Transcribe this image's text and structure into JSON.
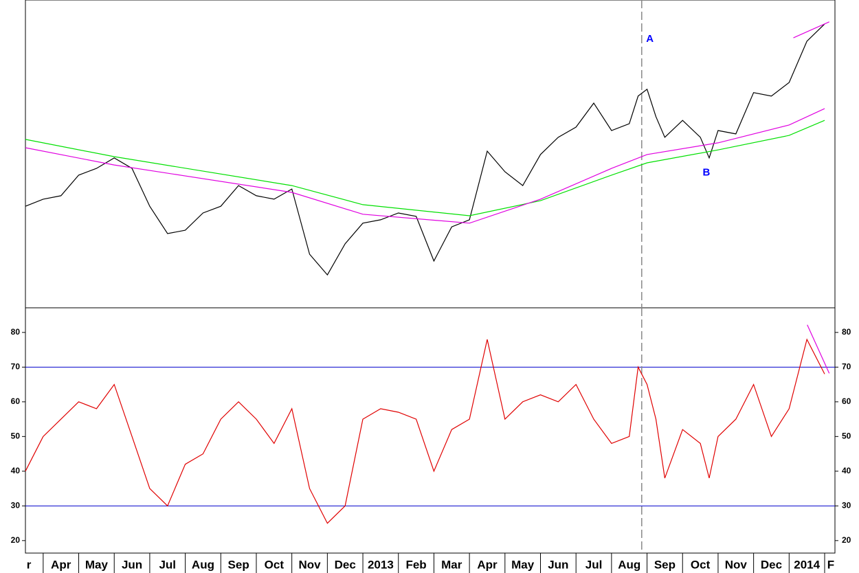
{
  "chart_data": [
    {
      "type": "line",
      "x": [
        0.5,
        1,
        1.5,
        2,
        2.5,
        3,
        3.5,
        4,
        4.5,
        5,
        5.5,
        6,
        6.5,
        7,
        7.5,
        8,
        8.5,
        9,
        9.5,
        10,
        10.5,
        11,
        11.5,
        12,
        12.5,
        13,
        13.5,
        14,
        14.5,
        15,
        15.5,
        16,
        16.5,
        17,
        17.5,
        17.75,
        18,
        18.25,
        18.5,
        19,
        19.5,
        19.75,
        20,
        20.5,
        21,
        21.5,
        22,
        22.5,
        23
      ],
      "xlim": [
        0.5,
        23.29
      ],
      "ylim": [
        0,
        100
      ],
      "series": [
        {
          "color": "#000000",
          "values": [
            33.0,
            35.3,
            36.4,
            43.1,
            45.3,
            48.7,
            45.3,
            33.0,
            24.1,
            25.2,
            30.8,
            33.0,
            39.7,
            36.4,
            35.3,
            38.6,
            17.4,
            10.7,
            20.8,
            27.5,
            28.6,
            30.8,
            29.7,
            15.2,
            26.3,
            28.6,
            50.9,
            44.2,
            39.7,
            49.8,
            55.4,
            58.7,
            66.5,
            57.6,
            59.8,
            68.8,
            71.0,
            62.1,
            55.4,
            60.9,
            55.4,
            48.7,
            57.6,
            56.5,
            69.9,
            68.8,
            73.2,
            86.6,
            92.2
          ]
        },
        {
          "color": "#00e000",
          "x": [
            0.5,
            3,
            8,
            10,
            13,
            15,
            17,
            18,
            20,
            22,
            23
          ],
          "values": [
            54.7,
            49.1,
            39.7,
            33.5,
            29.9,
            34.8,
            43.1,
            47.1,
            51.3,
            56.0,
            60.9
          ]
        },
        {
          "color": "#e000e0",
          "x": [
            0.5,
            3,
            8,
            10,
            13,
            15,
            17,
            18,
            20,
            22,
            23
          ],
          "values": [
            52.0,
            46.4,
            37.5,
            30.4,
            27.5,
            35.3,
            45.3,
            49.8,
            53.6,
            59.4,
            64.7
          ]
        },
        {
          "color": "#e000e0",
          "x": [
            22.12,
            23.13
          ],
          "values": [
            87.7,
            92.9
          ]
        }
      ],
      "vline": 17.85,
      "annotations": [
        {
          "text": "A",
          "x": 18.08,
          "y": 87.3
        },
        {
          "text": "B",
          "x": 19.67,
          "y": 43.8
        }
      ]
    },
    {
      "type": "line",
      "x": [
        0.5,
        1,
        1.5,
        2,
        2.5,
        3,
        3.5,
        4,
        4.5,
        5,
        5.5,
        6,
        6.5,
        7,
        7.5,
        8,
        8.5,
        9,
        9.5,
        10,
        10.5,
        11,
        11.5,
        12,
        12.5,
        13,
        13.5,
        14,
        14.5,
        15,
        15.5,
        16,
        16.5,
        17,
        17.5,
        17.75,
        18,
        18.25,
        18.5,
        19,
        19.5,
        19.75,
        20,
        20.5,
        21,
        21.5,
        22,
        22.5,
        23
      ],
      "xlim": [
        0.5,
        23.29
      ],
      "ylim": [
        16.4,
        87.1
      ],
      "yticks": [
        20,
        30,
        40,
        50,
        60,
        70,
        80
      ],
      "hlines": [
        30,
        70
      ],
      "hline_color": "#0000cc",
      "series": [
        {
          "color": "#e00000",
          "values": [
            40,
            50,
            55,
            60,
            58,
            65,
            50,
            35,
            30,
            42,
            45,
            55,
            60,
            55,
            48,
            58,
            35,
            25,
            30,
            55,
            58,
            57,
            55,
            40,
            52,
            55,
            78,
            55,
            60,
            62,
            60,
            65,
            55,
            48,
            50,
            70,
            65,
            55,
            38,
            52,
            48,
            38,
            50,
            55,
            65,
            50,
            58,
            78,
            68
          ]
        },
        {
          "color": "#e000e0",
          "x": [
            22.51,
            23.13
          ],
          "values": [
            82.2,
            68.2
          ]
        }
      ],
      "vline": 17.85,
      "xticks": [
        {
          "value": 0,
          "label": "r"
        },
        {
          "value": 1,
          "label": "Apr"
        },
        {
          "value": 2,
          "label": "May"
        },
        {
          "value": 3,
          "label": "Jun"
        },
        {
          "value": 4,
          "label": "Jul"
        },
        {
          "value": 5,
          "label": "Aug"
        },
        {
          "value": 6,
          "label": "Sep"
        },
        {
          "value": 7,
          "label": "Oct"
        },
        {
          "value": 8,
          "label": "Nov"
        },
        {
          "value": 9,
          "label": "Dec"
        },
        {
          "value": 10,
          "label": "2013"
        },
        {
          "value": 11,
          "label": "Feb"
        },
        {
          "value": 12,
          "label": "Mar"
        },
        {
          "value": 13,
          "label": "Apr"
        },
        {
          "value": 14,
          "label": "May"
        },
        {
          "value": 15,
          "label": "Jun"
        },
        {
          "value": 16,
          "label": "Jul"
        },
        {
          "value": 17,
          "label": "Aug"
        },
        {
          "value": 18,
          "label": "Sep"
        },
        {
          "value": 19,
          "label": "Oct"
        },
        {
          "value": 20,
          "label": "Nov"
        },
        {
          "value": 21,
          "label": "Dec"
        },
        {
          "value": 22,
          "label": "2014"
        },
        {
          "value": 23,
          "label": "F"
        }
      ]
    }
  ]
}
